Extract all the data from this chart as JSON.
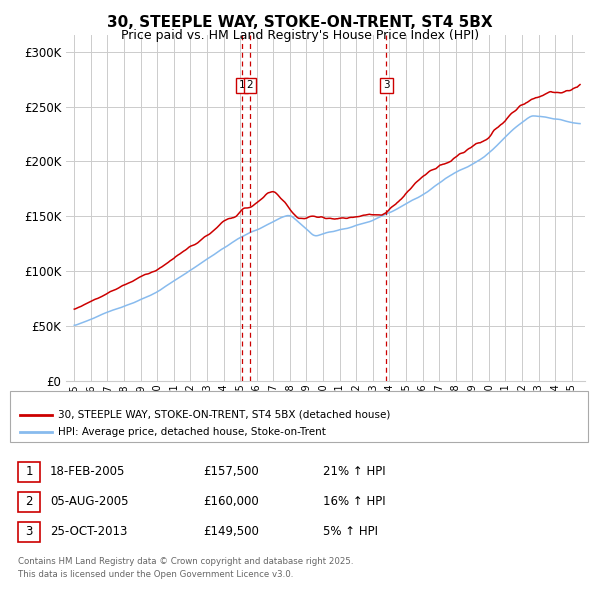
{
  "title": "30, STEEPLE WAY, STOKE-ON-TRENT, ST4 5BX",
  "subtitle": "Price paid vs. HM Land Registry's House Price Index (HPI)",
  "title_fontsize": 11,
  "subtitle_fontsize": 9,
  "ylabel_ticks": [
    "£0",
    "£50K",
    "£100K",
    "£150K",
    "£200K",
    "£250K",
    "£300K"
  ],
  "ytick_vals": [
    0,
    50000,
    100000,
    150000,
    200000,
    250000,
    300000
  ],
  "ylim": [
    0,
    315000
  ],
  "xlim_start": 1994.5,
  "xlim_end": 2025.8,
  "red_color": "#cc0000",
  "blue_color": "#88bbee",
  "vline_color": "#cc0000",
  "purchase_dates": [
    2005.13,
    2005.59,
    2013.82
  ],
  "purchase_labels": [
    "1",
    "2",
    "3"
  ],
  "legend_label_red": "30, STEEPLE WAY, STOKE-ON-TRENT, ST4 5BX (detached house)",
  "legend_label_blue": "HPI: Average price, detached house, Stoke-on-Trent",
  "table_rows": [
    [
      "1",
      "18-FEB-2005",
      "£157,500",
      "21% ↑ HPI"
    ],
    [
      "2",
      "05-AUG-2005",
      "£160,000",
      "16% ↑ HPI"
    ],
    [
      "3",
      "25-OCT-2013",
      "£149,500",
      "5% ↑ HPI"
    ]
  ],
  "footer_text": "Contains HM Land Registry data © Crown copyright and database right 2025.\nThis data is licensed under the Open Government Licence v3.0.",
  "background_color": "#ffffff",
  "grid_color": "#cccccc"
}
